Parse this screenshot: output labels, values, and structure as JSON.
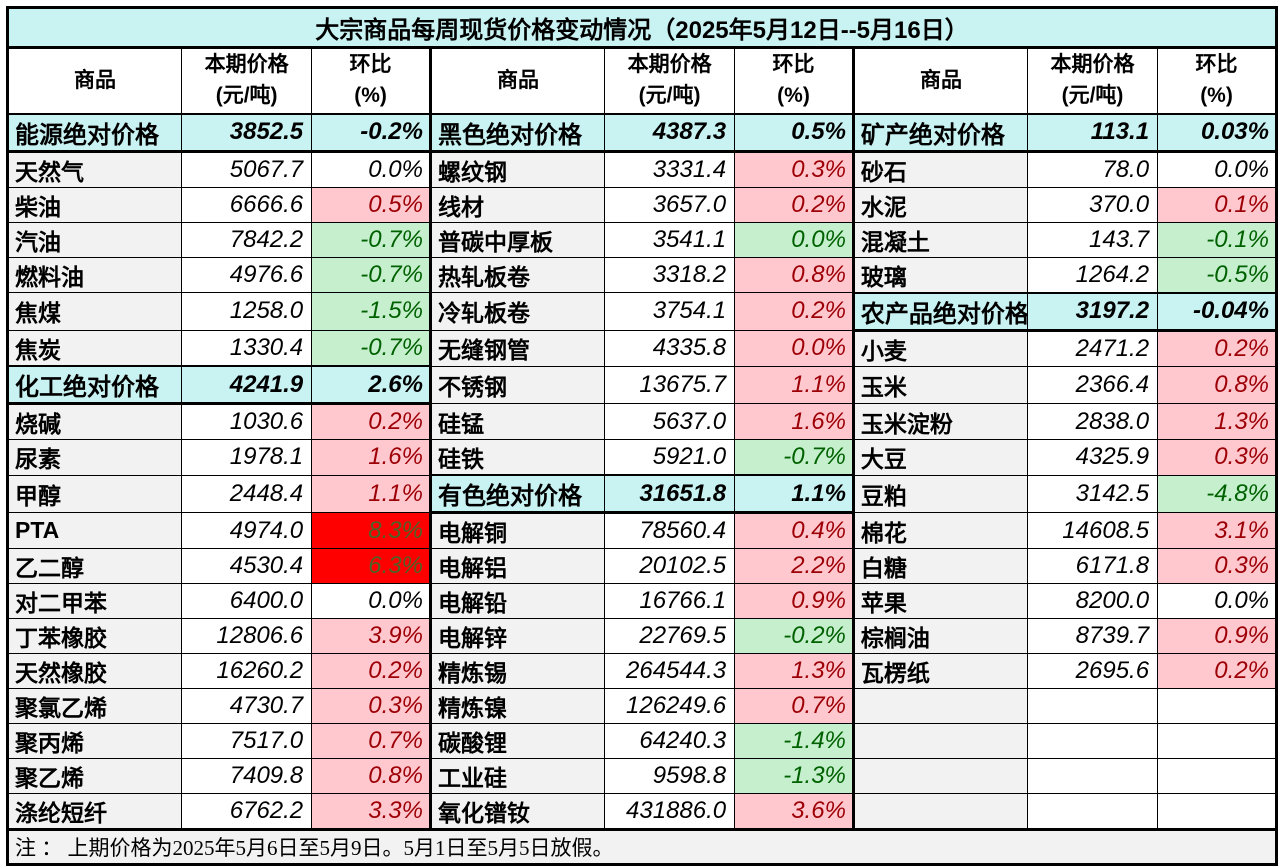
{
  "title": "大宗商品每周现货价格变动情况（2025年5月12日--5月16日）",
  "columns": {
    "commodity": "商品",
    "price_line1": "本期价格",
    "price_line2": "(元/吨)",
    "pct_line1": "环比",
    "pct_line2": "(%)"
  },
  "note": "注 ： 上期价格为2025年5月6日至5月9日。5月1日至5月5日放假。",
  "colors": {
    "title_bg": "#C9F2F2",
    "section_bg": "#C9F2F2",
    "commodity_bg": "#F2F2F2",
    "rise_bg": "#FFC7CE",
    "rise_text": "#9C0006",
    "fall_bg": "#C6EFCE",
    "fall_text": "#006100",
    "strong_rise_bg": "#FF0000",
    "strong_rise_text": "#4F6228",
    "border": "#000000"
  },
  "rows": [
    [
      [
        "能源绝对价格",
        "3852.5",
        "-0.2%",
        "sec"
      ],
      [
        "黑色绝对价格",
        "4387.3",
        "0.5%",
        "sec"
      ],
      [
        "矿产绝对价格",
        "113.1",
        "0.03%",
        "sec"
      ]
    ],
    [
      [
        "天然气",
        "5067.7",
        "0.0%",
        "flat"
      ],
      [
        "螺纹钢",
        "3331.4",
        "0.3%",
        "up"
      ],
      [
        "砂石",
        "78.0",
        "0.0%",
        "flat"
      ]
    ],
    [
      [
        "柴油",
        "6666.6",
        "0.5%",
        "up"
      ],
      [
        "线材",
        "3657.0",
        "0.2%",
        "up"
      ],
      [
        "水泥",
        "370.0",
        "0.1%",
        "up"
      ]
    ],
    [
      [
        "汽油",
        "7842.2",
        "-0.7%",
        "down"
      ],
      [
        "普碳中厚板",
        "3541.1",
        "0.0%",
        "down"
      ],
      [
        "混凝土",
        "143.7",
        "-0.1%",
        "down"
      ]
    ],
    [
      [
        "燃料油",
        "4976.6",
        "-0.7%",
        "down"
      ],
      [
        "热轧板卷",
        "3318.2",
        "0.8%",
        "up"
      ],
      [
        "玻璃",
        "1264.2",
        "-0.5%",
        "down"
      ]
    ],
    [
      [
        "焦煤",
        "1258.0",
        "-1.5%",
        "down"
      ],
      [
        "冷轧板卷",
        "3754.1",
        "0.2%",
        "up"
      ],
      [
        "农产品绝对价格",
        "3197.2",
        "-0.04%",
        "sec"
      ]
    ],
    [
      [
        "焦炭",
        "1330.4",
        "-0.7%",
        "down"
      ],
      [
        "无缝钢管",
        "4335.8",
        "0.0%",
        "up"
      ],
      [
        "小麦",
        "2471.2",
        "0.2%",
        "up"
      ]
    ],
    [
      [
        "化工绝对价格",
        "4241.9",
        "2.6%",
        "sec"
      ],
      [
        "不锈钢",
        "13675.7",
        "1.1%",
        "up"
      ],
      [
        "玉米",
        "2366.4",
        "0.8%",
        "up"
      ]
    ],
    [
      [
        "烧碱",
        "1030.6",
        "0.2%",
        "up"
      ],
      [
        "硅锰",
        "5637.0",
        "1.6%",
        "up"
      ],
      [
        "玉米淀粉",
        "2838.0",
        "1.3%",
        "up"
      ]
    ],
    [
      [
        "尿素",
        "1978.1",
        "1.6%",
        "up"
      ],
      [
        "硅铁",
        "5921.0",
        "-0.7%",
        "down"
      ],
      [
        "大豆",
        "4325.9",
        "0.3%",
        "up"
      ]
    ],
    [
      [
        "甲醇",
        "2448.4",
        "1.1%",
        "up"
      ],
      [
        "有色绝对价格",
        "31651.8",
        "1.1%",
        "sec"
      ],
      [
        "豆粕",
        "3142.5",
        "-4.8%",
        "down"
      ]
    ],
    [
      [
        "PTA",
        "4974.0",
        "8.3%",
        "hot"
      ],
      [
        "电解铜",
        "78560.4",
        "0.4%",
        "up"
      ],
      [
        "棉花",
        "14608.5",
        "3.1%",
        "up"
      ]
    ],
    [
      [
        "乙二醇",
        "4530.4",
        "6.3%",
        "hot"
      ],
      [
        "电解铝",
        "20102.5",
        "2.2%",
        "up"
      ],
      [
        "白糖",
        "6171.8",
        "0.3%",
        "up"
      ]
    ],
    [
      [
        "对二甲苯",
        "6400.0",
        "0.0%",
        "flat"
      ],
      [
        "电解铅",
        "16766.1",
        "0.9%",
        "up"
      ],
      [
        "苹果",
        "8200.0",
        "0.0%",
        "flat"
      ]
    ],
    [
      [
        "丁苯橡胶",
        "12806.6",
        "3.9%",
        "up"
      ],
      [
        "电解锌",
        "22769.5",
        "-0.2%",
        "down"
      ],
      [
        "棕榈油",
        "8739.7",
        "0.9%",
        "up"
      ]
    ],
    [
      [
        "天然橡胶",
        "16260.2",
        "0.2%",
        "up"
      ],
      [
        "精炼锡",
        "264544.3",
        "1.3%",
        "up"
      ],
      [
        "瓦楞纸",
        "2695.6",
        "0.2%",
        "up"
      ]
    ],
    [
      [
        "聚氯乙烯",
        "4730.7",
        "0.3%",
        "up"
      ],
      [
        "精炼镍",
        "126249.6",
        "0.7%",
        "up"
      ],
      [
        "",
        "",
        "",
        "empty"
      ]
    ],
    [
      [
        "聚丙烯",
        "7517.0",
        "0.7%",
        "up"
      ],
      [
        "碳酸锂",
        "64240.3",
        "-1.4%",
        "down"
      ],
      [
        "",
        "",
        "",
        "empty"
      ]
    ],
    [
      [
        "聚乙烯",
        "7409.8",
        "0.8%",
        "up"
      ],
      [
        "工业硅",
        "9598.8",
        "-1.3%",
        "down"
      ],
      [
        "",
        "",
        "",
        "empty"
      ]
    ],
    [
      [
        "涤纶短纤",
        "6762.2",
        "3.3%",
        "up"
      ],
      [
        "氧化镨钕",
        "431886.0",
        "3.6%",
        "up"
      ],
      [
        "",
        "",
        "",
        "empty"
      ]
    ]
  ]
}
